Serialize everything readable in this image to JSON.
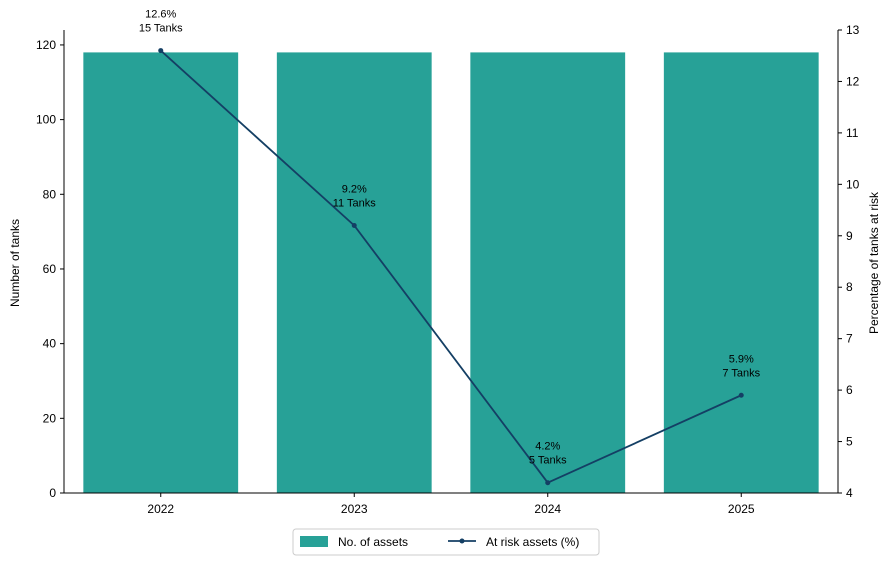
{
  "chart_data": {
    "type": "bar",
    "categories": [
      "2022",
      "2023",
      "2024",
      "2025"
    ],
    "series": [
      {
        "name": "No. of assets",
        "type": "bar",
        "axis": "left",
        "color": "#27A197",
        "values": [
          118,
          118,
          118,
          118
        ]
      },
      {
        "name": "At risk assets (%)",
        "type": "line",
        "axis": "right",
        "color": "#143F64",
        "marker": "circle",
        "values": [
          12.6,
          9.2,
          4.2,
          5.9
        ]
      }
    ],
    "annotations": [
      {
        "category": "2022",
        "line1": "12.6%",
        "line2": "15 Tanks"
      },
      {
        "category": "2023",
        "line1": "9.2%",
        "line2": "11 Tanks"
      },
      {
        "category": "2024",
        "line1": "4.2%",
        "line2": "5 Tanks"
      },
      {
        "category": "2025",
        "line1": "5.9%",
        "line2": "7 Tanks"
      }
    ],
    "title": "",
    "xlabel": "",
    "ylabel_left": "Number of tanks",
    "ylabel_right": "Percentage of tanks at risk",
    "ylim_left": [
      0,
      124
    ],
    "ylim_right": [
      4,
      13
    ],
    "yticks_left": [
      0,
      20,
      40,
      60,
      80,
      100,
      120
    ],
    "yticks_right": [
      4,
      5,
      6,
      7,
      8,
      9,
      10,
      11,
      12,
      13
    ],
    "grid": false,
    "legend_position": "bottom-center"
  }
}
